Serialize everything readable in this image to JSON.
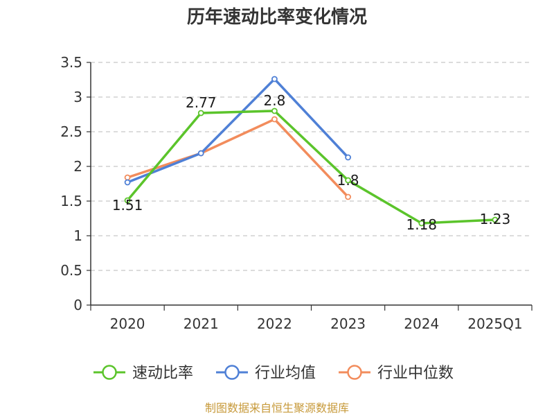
{
  "chart_data": {
    "type": "line",
    "title": "历年速动比率变化情况",
    "categories": [
      "2020",
      "2021",
      "2022",
      "2023",
      "2024",
      "2025Q1"
    ],
    "ylim": [
      0,
      3.5
    ],
    "yticks": [
      "0",
      "0.5",
      "1",
      "1.5",
      "2",
      "2.5",
      "3",
      "3.5"
    ],
    "grid": true,
    "legend_position": "bottom",
    "series": [
      {
        "name": "速动比率",
        "color": "#5bc42b",
        "values": [
          1.51,
          2.77,
          2.8,
          1.8,
          1.18,
          1.23
        ],
        "labels": [
          "1.51",
          "2.77",
          "2.8",
          "1.8",
          "1.18",
          "1.23"
        ]
      },
      {
        "name": "行业均值",
        "color": "#4f80d6",
        "values": [
          1.77,
          2.19,
          3.26,
          2.13,
          null,
          null
        ]
      },
      {
        "name": "行业中位数",
        "color": "#f28c5c",
        "values": [
          1.84,
          2.19,
          2.68,
          1.56,
          null,
          null
        ]
      }
    ]
  },
  "source": "制图数据来自恒生聚源数据库"
}
